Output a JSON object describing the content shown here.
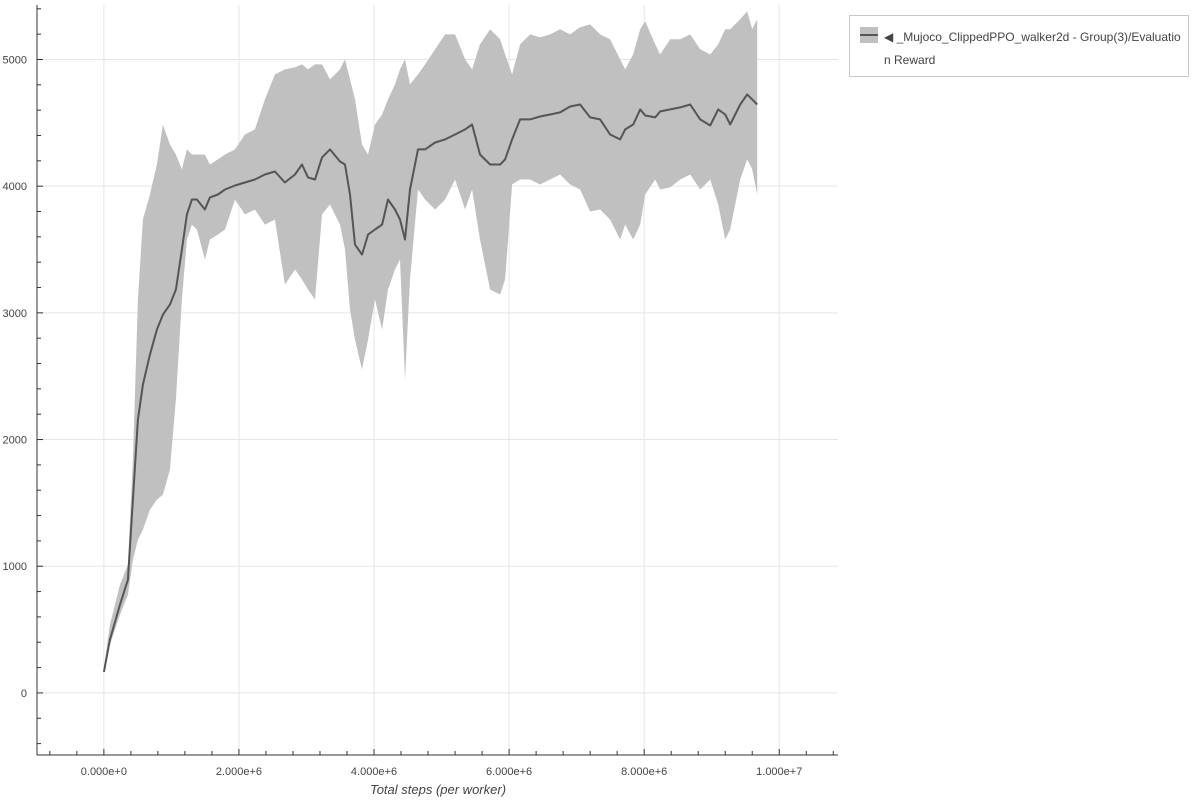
{
  "chart_data": {
    "type": "area",
    "title": "",
    "xlabel": "Total steps (per worker)",
    "ylabel": "",
    "xlim": [
      -990000,
      10870000
    ],
    "ylim": [
      -490,
      5430
    ],
    "grid": true,
    "legend_position": "outside-top-right",
    "x_ticks": [
      0,
      2000000,
      4000000,
      6000000,
      8000000,
      10000000
    ],
    "x_tick_labels": [
      "0.000e+0",
      "2.000e+6",
      "4.000e+6",
      "6.000e+6",
      "8.000e+6",
      "1.000e+7"
    ],
    "y_ticks": [
      0,
      1000,
      2000,
      3000,
      4000,
      5000
    ],
    "y_tick_labels": [
      "0",
      "1000",
      "2000",
      "3000",
      "4000",
      "5000"
    ],
    "colors": {
      "band": "#c0c0c0",
      "line": "#555555",
      "grid": "#e5e5e5",
      "axis": "#333333"
    },
    "series": [
      {
        "name": "◀ _Mujoco_ClippedPPO_walker2d - Group(3)/Evaluation Reward",
        "x": [
          0,
          89000,
          237000,
          356000,
          430000,
          504000,
          578000,
          681000,
          785000,
          874000,
          978000,
          1067000,
          1156000,
          1230000,
          1304000,
          1378000,
          1496000,
          1570000,
          1689000,
          1793000,
          1941000,
          2089000,
          2237000,
          2385000,
          2533000,
          2681000,
          2830000,
          2933000,
          3022000,
          3126000,
          3230000,
          3348000,
          3496000,
          3570000,
          3644000,
          3719000,
          3822000,
          3911000,
          4015000,
          4119000,
          4207000,
          4311000,
          4385000,
          4459000,
          4533000,
          4652000,
          4756000,
          4904000,
          5052000,
          5200000,
          5348000,
          5452000,
          5570000,
          5719000,
          5867000,
          5941000,
          6044000,
          6163000,
          6311000,
          6459000,
          6607000,
          6756000,
          6904000,
          7052000,
          7200000,
          7348000,
          7496000,
          7644000,
          7719000,
          7837000,
          7941000,
          8015000,
          8163000,
          8237000,
          8385000,
          8533000,
          8681000,
          8830000,
          8978000,
          9096000,
          9200000,
          9274000,
          9422000,
          9526000,
          9600000,
          9674000
        ],
        "mean": [
          166,
          419,
          695,
          893,
          1525,
          2157,
          2433,
          2670,
          2868,
          2986,
          3065,
          3184,
          3500,
          3776,
          3895,
          3895,
          3816,
          3911,
          3934,
          3974,
          4005,
          4029,
          4053,
          4092,
          4116,
          4029,
          4092,
          4171,
          4069,
          4053,
          4227,
          4290,
          4195,
          4171,
          3934,
          3539,
          3460,
          3618,
          3658,
          3697,
          3895,
          3816,
          3737,
          3579,
          3974,
          4290,
          4290,
          4345,
          4369,
          4408,
          4448,
          4487,
          4250,
          4171,
          4171,
          4211,
          4369,
          4527,
          4527,
          4550,
          4566,
          4582,
          4629,
          4645,
          4543,
          4527,
          4408,
          4369,
          4448,
          4487,
          4606,
          4558,
          4543,
          4590,
          4606,
          4622,
          4645,
          4527,
          4479,
          4606,
          4566,
          4487,
          4645,
          4724,
          4685,
          4645
        ],
        "upper": [
          198,
          537,
          853,
          1011,
          1841,
          3105,
          3737,
          3934,
          4171,
          4487,
          4329,
          4250,
          4132,
          4290,
          4250,
          4250,
          4250,
          4171,
          4211,
          4250,
          4290,
          4408,
          4448,
          4685,
          4882,
          4922,
          4938,
          4961,
          4922,
          4961,
          4961,
          4843,
          4922,
          5001,
          4843,
          4685,
          4329,
          4250,
          4487,
          4566,
          4685,
          4803,
          4922,
          5001,
          4803,
          4882,
          4961,
          5080,
          5198,
          5198,
          5001,
          4922,
          5119,
          5238,
          5159,
          5040,
          4882,
          5119,
          5198,
          5175,
          5198,
          5238,
          5198,
          5254,
          5277,
          5198,
          5159,
          5001,
          4922,
          5040,
          5238,
          5301,
          5119,
          5040,
          5159,
          5159,
          5198,
          5080,
          5040,
          5119,
          5238,
          5238,
          5317,
          5380,
          5238,
          5317
        ],
        "lower": [
          166,
          379,
          616,
          774,
          1051,
          1209,
          1288,
          1446,
          1525,
          1564,
          1762,
          2315,
          3105,
          3579,
          3697,
          3658,
          3421,
          3579,
          3618,
          3658,
          3895,
          3776,
          3816,
          3697,
          3737,
          3223,
          3342,
          3263,
          3184,
          3105,
          3776,
          3855,
          3697,
          3500,
          3026,
          2789,
          2552,
          2789,
          3105,
          2868,
          3184,
          3342,
          3421,
          2473,
          3263,
          3974,
          3895,
          3816,
          3895,
          4053,
          3816,
          3974,
          3579,
          3184,
          3145,
          3263,
          4013,
          4053,
          4053,
          4013,
          4053,
          4092,
          4013,
          3974,
          3800,
          3816,
          3737,
          3579,
          3697,
          3579,
          3697,
          3934,
          4053,
          3974,
          3990,
          4053,
          4092,
          3974,
          4053,
          3855,
          3579,
          3658,
          4053,
          4211,
          4132,
          3934
        ]
      }
    ]
  },
  "legend": {
    "entries": [
      {
        "label": "◀ _Mujoco_ClippedPPO_walker2d - Group(3)/Evaluation Reward",
        "icon": "band-with-line-swatch"
      }
    ]
  }
}
